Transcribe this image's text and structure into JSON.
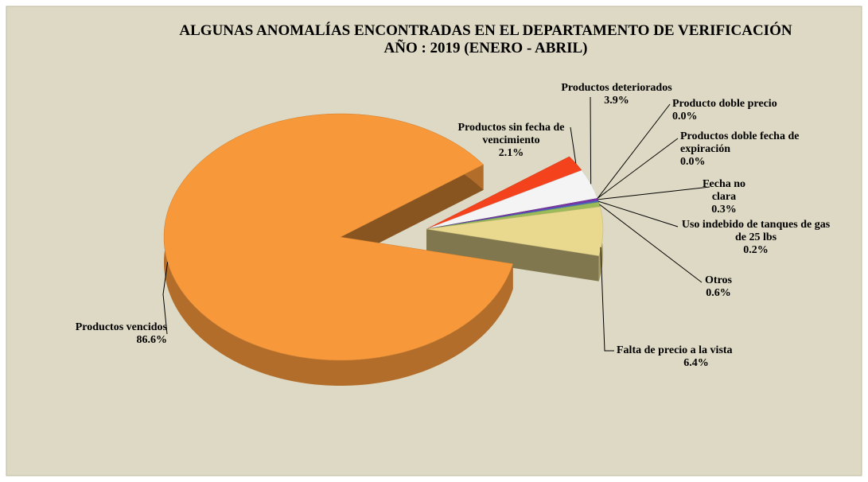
{
  "chart_data": {
    "type": "pie",
    "title": "ALGUNAS ANOMALÍAS ENCONTRADAS EN EL DEPARTAMENTO DE VERIFICACIÓN",
    "subtitle": "AÑO : 2019 (ENERO - ABRIL)",
    "categories": [
      "Productos vencidos",
      "Productos sin fecha de vencimiento",
      "Productos deteriorados",
      "Producto doble precio",
      "Productos doble fecha de expiración",
      "Fecha no clara",
      "Uso indebido de tanques de gas de 25 lbs",
      "Otros",
      "Falta de precio a la vista"
    ],
    "values": [
      86.6,
      2.1,
      3.9,
      0.0,
      0.0,
      0.3,
      0.2,
      0.6,
      6.4
    ],
    "value_labels": [
      "86.6%",
      "2.1%",
      "3.9%",
      "0.0%",
      "0.0%",
      "0.3%",
      "0.2%",
      "0.6%",
      "6.4%"
    ],
    "colors": [
      "#f7983a",
      "#f4431c",
      "#f4f4f4",
      "#c0c0c0",
      "#a0a0a0",
      "#7a35a8",
      "#4a6cc4",
      "#9bbb59",
      "#e9d98e"
    ]
  }
}
